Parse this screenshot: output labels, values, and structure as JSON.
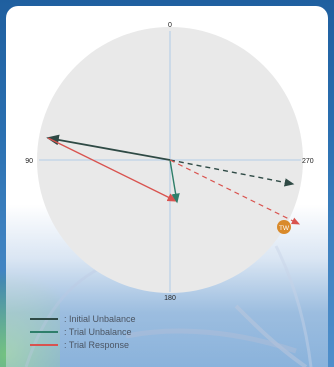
{
  "chart_data": {
    "type": "polar-vector",
    "angle_labels": [
      "0",
      "90",
      "180",
      "270"
    ],
    "marker_label": "TW",
    "legend": [
      {
        "label": ": Initial Unbalance",
        "color": "#2f4a45"
      },
      {
        "label": ": Trial Unbalance",
        "color": "#2f7f6a"
      },
      {
        "label": ": Trial Response",
        "color": "#d9534f"
      }
    ],
    "colors": {
      "disc": "#e9e9e9",
      "axis": "#9fc3e6",
      "dashed_initial": "#2f4a45",
      "dashed_response": "#d9534f",
      "marker_fill": "#d98a2b"
    }
  }
}
